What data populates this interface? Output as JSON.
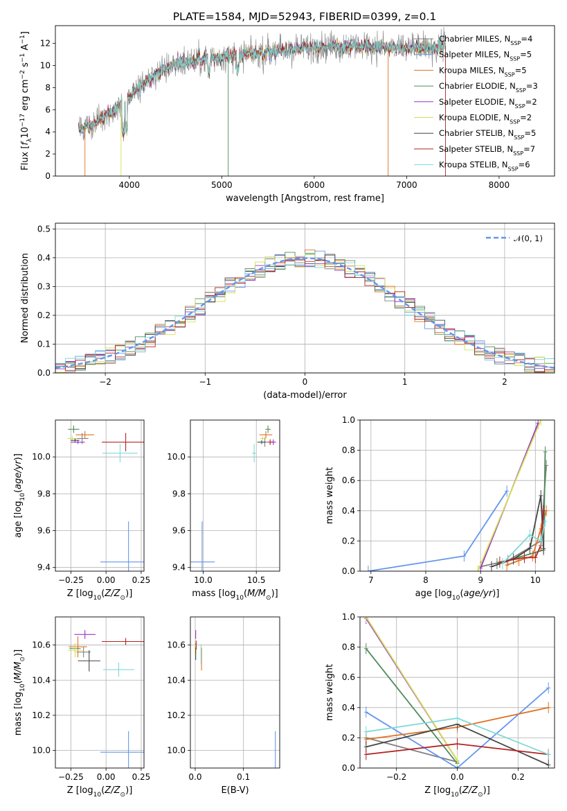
{
  "title": "PLATE=1584, MJD=52943, FIBERID=0399, z=0.1",
  "models": [
    {
      "name": "Chabrier MILES, N$_{SSP}$=4",
      "label_main": "Chabrier MILES, N",
      "label_sub": "SSP",
      "label_tail": "=4",
      "color": "#808080"
    },
    {
      "name": "Salpeter MILES, N$_{SSP}$=5",
      "label_main": "Salpeter MILES, N",
      "label_sub": "SSP",
      "label_tail": "=5",
      "color": "#6495ed"
    },
    {
      "name": "Kroupa MILES, N$_{SSP}$=5",
      "label_main": "Kroupa MILES, N",
      "label_sub": "SSP",
      "label_tail": "=5",
      "color": "#e07020"
    },
    {
      "name": "Chabrier ELODIE, N$_{SSP}$=3",
      "label_main": "Chabrier ELODIE, N",
      "label_sub": "SSP",
      "label_tail": "=3",
      "color": "#4e8b5a"
    },
    {
      "name": "Salpeter ELODIE, N$_{SSP}$=2",
      "label_main": "Salpeter ELODIE, N",
      "label_sub": "SSP",
      "label_tail": "=2",
      "color": "#9932cc"
    },
    {
      "name": "Kroupa ELODIE, N$_{SSP}$=2",
      "label_main": "Kroupa ELODIE, N",
      "label_sub": "SSP",
      "label_tail": "=2",
      "color": "#d4e157"
    },
    {
      "name": "Chabrier STELIB, N$_{SSP}$=5",
      "label_main": "Chabrier STELIB, N",
      "label_sub": "SSP",
      "label_tail": "=5",
      "color": "#444444"
    },
    {
      "name": "Salpeter STELIB, N$_{SSP}$=7",
      "label_main": "Salpeter STELIB, N",
      "label_sub": "SSP",
      "label_tail": "=7",
      "color": "#b22222"
    },
    {
      "name": "Kroupa STELIB, N$_{SSP}$=6",
      "label_main": "Kroupa STELIB, N",
      "label_sub": "SSP",
      "label_tail": "=6",
      "color": "#7fd8d8"
    }
  ],
  "chart_data": [
    {
      "type": "line",
      "panel": "spectrum",
      "xlabel": "wavelength [Angstrom, rest frame]",
      "ylabel": "Flux [f_λ 10^-17 erg cm^-2 s^-1 A^-1]",
      "xlim": [
        3200,
        8600
      ],
      "ylim": [
        0,
        13.6
      ],
      "xticks": [
        4000,
        5000,
        6000,
        7000,
        8000
      ],
      "yticks": [
        0,
        2,
        4,
        6,
        8,
        10,
        12
      ],
      "grid": false,
      "legend": "right",
      "x_range": [
        3450,
        7420
      ],
      "continuum": {
        "x": [
          3450,
          3600,
          3800,
          4000,
          4200,
          4500,
          5000,
          5500,
          6000,
          6500,
          7000,
          7420
        ],
        "y": [
          4.2,
          4.6,
          5.8,
          7.0,
          8.8,
          10.2,
          10.8,
          11.2,
          11.6,
          11.8,
          11.5,
          11.8
        ]
      }
    },
    {
      "type": "histogram",
      "panel": "residuals",
      "xlabel": "(data-model)/error",
      "ylabel": "Normed distribution",
      "xlim": [
        -2.5,
        2.5
      ],
      "ylim": [
        0,
        0.52
      ],
      "xticks": [
        -2,
        -1,
        0,
        1,
        2
      ],
      "yticks": [
        0.0,
        0.1,
        0.2,
        0.3,
        0.4,
        0.5
      ],
      "grid": true,
      "bin_width": 0.1,
      "reference": {
        "name": "N(0,1)",
        "style": "dashed",
        "color": "#6495ed"
      },
      "legend": "top-right"
    },
    {
      "type": "errorbar",
      "panel": "Z-age",
      "xlabel": "Z [log10(Z/Z⊙)]",
      "ylabel": "age [log10(age/yr)]",
      "xlim": [
        -0.36,
        0.27
      ],
      "ylim": [
        9.38,
        10.2
      ],
      "xticks": [
        -0.25,
        0.0,
        0.25
      ],
      "yticks": [
        9.4,
        9.6,
        9.8,
        10.0
      ],
      "grid": true,
      "points": [
        {
          "model": 0,
          "x": -0.17,
          "xerr": 0.09,
          "y": 10.1,
          "yerr": 0.06
        },
        {
          "model": 1,
          "x": 0.16,
          "xerr": 0.4,
          "y": 9.43,
          "yerr": 0.44
        },
        {
          "model": 2,
          "x": -0.15,
          "xerr": 0.13,
          "y": 10.12,
          "yerr": 0.04
        },
        {
          "model": 3,
          "x": -0.23,
          "xerr": 0.08,
          "y": 10.15,
          "yerr": 0.04
        },
        {
          "model": 4,
          "x": -0.2,
          "xerr": 0.1,
          "y": 10.08,
          "yerr": 0.02
        },
        {
          "model": 5,
          "x": -0.24,
          "xerr": 0.07,
          "y": 10.1,
          "yerr": 0.03
        },
        {
          "model": 6,
          "x": -0.22,
          "xerr": 0.06,
          "y": 10.09,
          "yerr": 0.02
        },
        {
          "model": 7,
          "x": 0.14,
          "xerr": 0.34,
          "y": 10.08,
          "yerr": 0.1
        },
        {
          "model": 8,
          "x": 0.1,
          "xerr": 0.25,
          "y": 10.02,
          "yerr": 0.1
        }
      ]
    },
    {
      "type": "errorbar",
      "panel": "mass-age",
      "xlabel": "mass [log10(M/M⊙)]",
      "ylabel": "",
      "xlim": [
        9.88,
        10.72
      ],
      "ylim": [
        9.38,
        10.2
      ],
      "xticks": [
        10.0,
        10.5
      ],
      "yticks": [
        9.4,
        9.6,
        9.8,
        10.0
      ],
      "grid": true,
      "points": [
        {
          "model": 0,
          "x": 10.58,
          "xerr": 0.05,
          "y": 10.08,
          "yerr": 0.05
        },
        {
          "model": 1,
          "x": 9.99,
          "xerr": 0.24,
          "y": 9.43,
          "yerr": 0.44
        },
        {
          "model": 2,
          "x": 10.59,
          "xerr": 0.12,
          "y": 10.12,
          "yerr": 0.04
        },
        {
          "model": 3,
          "x": 10.61,
          "xerr": 0.05,
          "y": 10.15,
          "yerr": 0.04
        },
        {
          "model": 4,
          "x": 10.66,
          "xerr": 0.05,
          "y": 10.08,
          "yerr": 0.03
        },
        {
          "model": 5,
          "x": 10.56,
          "xerr": 0.05,
          "y": 10.1,
          "yerr": 0.02
        },
        {
          "model": 6,
          "x": 10.55,
          "xerr": 0.08,
          "y": 10.08,
          "yerr": 0.02
        },
        {
          "model": 7,
          "x": 10.63,
          "xerr": 0.05,
          "y": 10.08,
          "yerr": 0.03
        },
        {
          "model": 8,
          "x": 10.48,
          "xerr": 0.04,
          "y": 10.02,
          "yerr": 0.1
        }
      ]
    },
    {
      "type": "line",
      "panel": "age-weight",
      "xlabel": "age [log10(age/yr)]",
      "ylabel": "mass weight",
      "xlim": [
        6.8,
        10.35
      ],
      "ylim": [
        0,
        1.0
      ],
      "xticks": [
        7,
        8,
        9,
        10
      ],
      "yticks": [
        0.0,
        0.2,
        0.4,
        0.6,
        0.8,
        1.0
      ],
      "grid": true,
      "series": [
        {
          "model": 0,
          "x": [
            9.0,
            9.5,
            10.1,
            10.2
          ],
          "y": [
            0.03,
            0.07,
            0.2,
            0.7
          ]
        },
        {
          "model": 1,
          "x": [
            6.95,
            8.7,
            9.48
          ],
          "y": [
            0.0,
            0.1,
            0.53
          ]
        },
        {
          "model": 2,
          "x": [
            9.48,
            9.7,
            9.95,
            10.1,
            10.2
          ],
          "y": [
            0.04,
            0.07,
            0.1,
            0.28,
            0.4
          ]
        },
        {
          "model": 3,
          "x": [
            9.3,
            10.15,
            10.18
          ],
          "y": [
            0.05,
            0.14,
            0.79
          ]
        },
        {
          "model": 4,
          "x": [
            9.0,
            10.05
          ],
          "y": [
            0.02,
            0.98
          ]
        },
        {
          "model": 5,
          "x": [
            8.95,
            10.1
          ],
          "y": [
            0.0,
            1.0
          ]
        },
        {
          "model": 6,
          "x": [
            9.2,
            9.6,
            9.9,
            10.1,
            10.15
          ],
          "y": [
            0.03,
            0.08,
            0.15,
            0.5,
            0.15
          ]
        },
        {
          "model": 7,
          "x": [
            9.35,
            9.8,
            10.0,
            10.1,
            10.15
          ],
          "y": [
            0.06,
            0.09,
            0.09,
            0.17,
            0.4
          ]
        },
        {
          "model": 8,
          "x": [
            9.4,
            9.9,
            10.1,
            10.18
          ],
          "y": [
            0.05,
            0.24,
            0.2,
            0.33
          ]
        }
      ]
    },
    {
      "type": "errorbar",
      "panel": "Z-mass",
      "xlabel": "Z [log10(Z/Z⊙)]",
      "ylabel": "mass [log10(M/M⊙)]",
      "xlim": [
        -0.36,
        0.27
      ],
      "ylim": [
        9.9,
        10.76
      ],
      "xticks": [
        -0.25,
        0.0,
        0.25
      ],
      "yticks": [
        10.0,
        10.2,
        10.4,
        10.6
      ],
      "grid": true,
      "points": [
        {
          "model": 0,
          "x": -0.16,
          "xerr": 0.1,
          "y": 10.56,
          "yerr": 0.06
        },
        {
          "model": 1,
          "x": 0.16,
          "xerr": 0.4,
          "y": 9.99,
          "yerr": 0.24
        },
        {
          "model": 2,
          "x": -0.2,
          "xerr": 0.13,
          "y": 10.59,
          "yerr": 0.12
        },
        {
          "model": 3,
          "x": -0.22,
          "xerr": 0.08,
          "y": 10.58,
          "yerr": 0.05
        },
        {
          "model": 4,
          "x": -0.15,
          "xerr": 0.15,
          "y": 10.66,
          "yerr": 0.05
        },
        {
          "model": 5,
          "x": -0.22,
          "xerr": 0.1,
          "y": 10.57,
          "yerr": 0.08
        },
        {
          "model": 6,
          "x": -0.12,
          "xerr": 0.16,
          "y": 10.51,
          "yerr": 0.12
        },
        {
          "model": 7,
          "x": 0.14,
          "xerr": 0.34,
          "y": 10.62,
          "yerr": 0.04
        },
        {
          "model": 8,
          "x": 0.09,
          "xerr": 0.22,
          "y": 10.46,
          "yerr": 0.08
        }
      ]
    },
    {
      "type": "errorbar",
      "panel": "EBV-mass",
      "xlabel": "E(B-V)",
      "ylabel": "",
      "xlim": [
        -0.01,
        0.175
      ],
      "ylim": [
        9.9,
        10.76
      ],
      "xticks": [
        0.0,
        0.1
      ],
      "yticks": [
        10.0,
        10.2,
        10.4,
        10.6
      ],
      "grid": true,
      "points": [
        {
          "model": 0,
          "x": 0.001,
          "y": 10.58,
          "yerr": 0.06
        },
        {
          "model": 1,
          "x": 0.166,
          "y": 9.99,
          "yerr": 0.24
        },
        {
          "model": 2,
          "x": 0.013,
          "y": 10.52,
          "yerr": 0.13
        },
        {
          "model": 3,
          "x": 0.0,
          "y": 10.58,
          "yerr": 0.05
        },
        {
          "model": 4,
          "x": 0.001,
          "y": 10.66,
          "yerr": 0.05
        },
        {
          "model": 5,
          "x": 0.0,
          "y": 10.57,
          "yerr": 0.07
        },
        {
          "model": 6,
          "x": 0.001,
          "y": 10.55,
          "yerr": 0.07
        },
        {
          "model": 7,
          "x": 0.002,
          "y": 10.6,
          "yerr": 0.05
        },
        {
          "model": 8,
          "x": 0.012,
          "y": 10.55,
          "yerr": 0.11
        }
      ]
    },
    {
      "type": "line",
      "panel": "Z-weight",
      "xlabel": "Z [log10(Z/Z⊙)]",
      "ylabel": "mass weight",
      "xlim": [
        -0.32,
        0.32
      ],
      "ylim": [
        0,
        1.0
      ],
      "xticks": [
        -0.2,
        0.0,
        0.2
      ],
      "yticks": [
        0.0,
        0.2,
        0.4,
        0.6,
        0.8,
        1.0
      ],
      "grid": true,
      "series": [
        {
          "model": 0,
          "x": [
            -0.3,
            0.0
          ],
          "y": [
            0.2,
            0.04
          ]
        },
        {
          "model": 1,
          "x": [
            -0.3,
            0.0,
            0.3
          ],
          "y": [
            0.37,
            0.0,
            0.53
          ]
        },
        {
          "model": 2,
          "x": [
            -0.3,
            0.0,
            0.3
          ],
          "y": [
            0.19,
            0.27,
            0.4
          ]
        },
        {
          "model": 3,
          "x": [
            -0.3,
            0.0
          ],
          "y": [
            0.79,
            0.03
          ]
        },
        {
          "model": 4,
          "x": [
            -0.3,
            0.0
          ],
          "y": [
            0.99,
            0.05
          ]
        },
        {
          "model": 5,
          "x": [
            -0.3,
            0.0
          ],
          "y": [
            1.0,
            0.05
          ]
        },
        {
          "model": 6,
          "x": [
            -0.3,
            0.0,
            0.3
          ],
          "y": [
            0.14,
            0.29,
            0.02
          ]
        },
        {
          "model": 7,
          "x": [
            -0.3,
            0.0,
            0.3
          ],
          "y": [
            0.09,
            0.16,
            0.09
          ]
        },
        {
          "model": 8,
          "x": [
            -0.3,
            0.0,
            0.3
          ],
          "y": [
            0.24,
            0.33,
            0.09
          ]
        }
      ]
    }
  ]
}
